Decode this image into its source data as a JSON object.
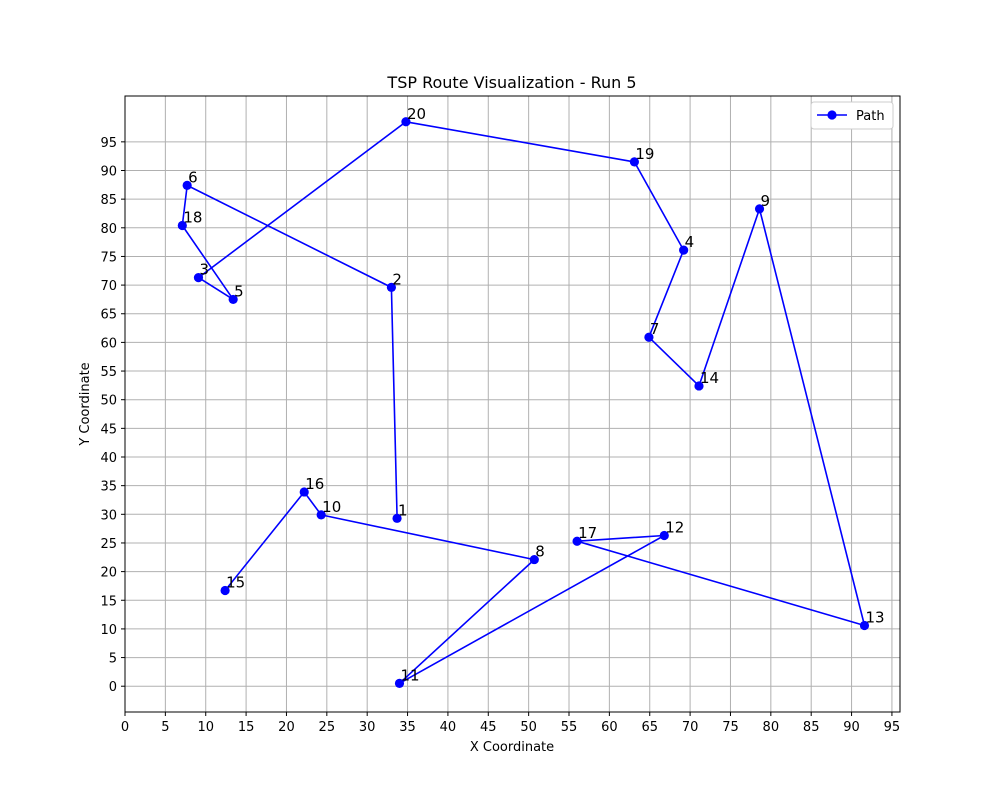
{
  "chart_data": {
    "type": "line",
    "title": "TSP Route Visualization - Run 5",
    "xlabel": "X Coordinate",
    "ylabel": "Y Coordinate",
    "xlim": [
      0,
      96
    ],
    "ylim": [
      -4.5,
      103
    ],
    "xticks": [
      0,
      5,
      10,
      15,
      20,
      25,
      30,
      35,
      40,
      45,
      50,
      55,
      60,
      65,
      70,
      75,
      80,
      85,
      90,
      95
    ],
    "yticks": [
      0,
      5,
      10,
      15,
      20,
      25,
      30,
      35,
      40,
      45,
      50,
      55,
      60,
      65,
      70,
      75,
      80,
      85,
      90,
      95
    ],
    "grid": true,
    "legend_position": "top-right",
    "color": "#0000ff",
    "series": [
      {
        "name": "Path",
        "points": [
          {
            "label": "1",
            "x": 33.7,
            "y": 29.3
          },
          {
            "label": "2",
            "x": 33.0,
            "y": 69.6
          },
          {
            "label": "6",
            "x": 7.7,
            "y": 87.4
          },
          {
            "label": "18",
            "x": 7.1,
            "y": 80.4
          },
          {
            "label": "5",
            "x": 13.4,
            "y": 67.5
          },
          {
            "label": "3",
            "x": 9.1,
            "y": 71.3
          },
          {
            "label": "20",
            "x": 34.8,
            "y": 98.5
          },
          {
            "label": "19",
            "x": 63.1,
            "y": 91.5
          },
          {
            "label": "4",
            "x": 69.2,
            "y": 76.1
          },
          {
            "label": "7",
            "x": 64.9,
            "y": 60.9
          },
          {
            "label": "14",
            "x": 71.1,
            "y": 52.4
          },
          {
            "label": "9",
            "x": 78.6,
            "y": 83.3
          },
          {
            "label": "13",
            "x": 91.6,
            "y": 10.6
          },
          {
            "label": "17",
            "x": 56.0,
            "y": 25.3
          },
          {
            "label": "12",
            "x": 66.8,
            "y": 26.3
          },
          {
            "label": "11",
            "x": 34.0,
            "y": 0.5
          },
          {
            "label": "8",
            "x": 50.7,
            "y": 22.1
          },
          {
            "label": "10",
            "x": 24.3,
            "y": 29.9
          },
          {
            "label": "16",
            "x": 22.2,
            "y": 33.9
          },
          {
            "label": "15",
            "x": 12.4,
            "y": 16.7
          }
        ]
      }
    ]
  }
}
